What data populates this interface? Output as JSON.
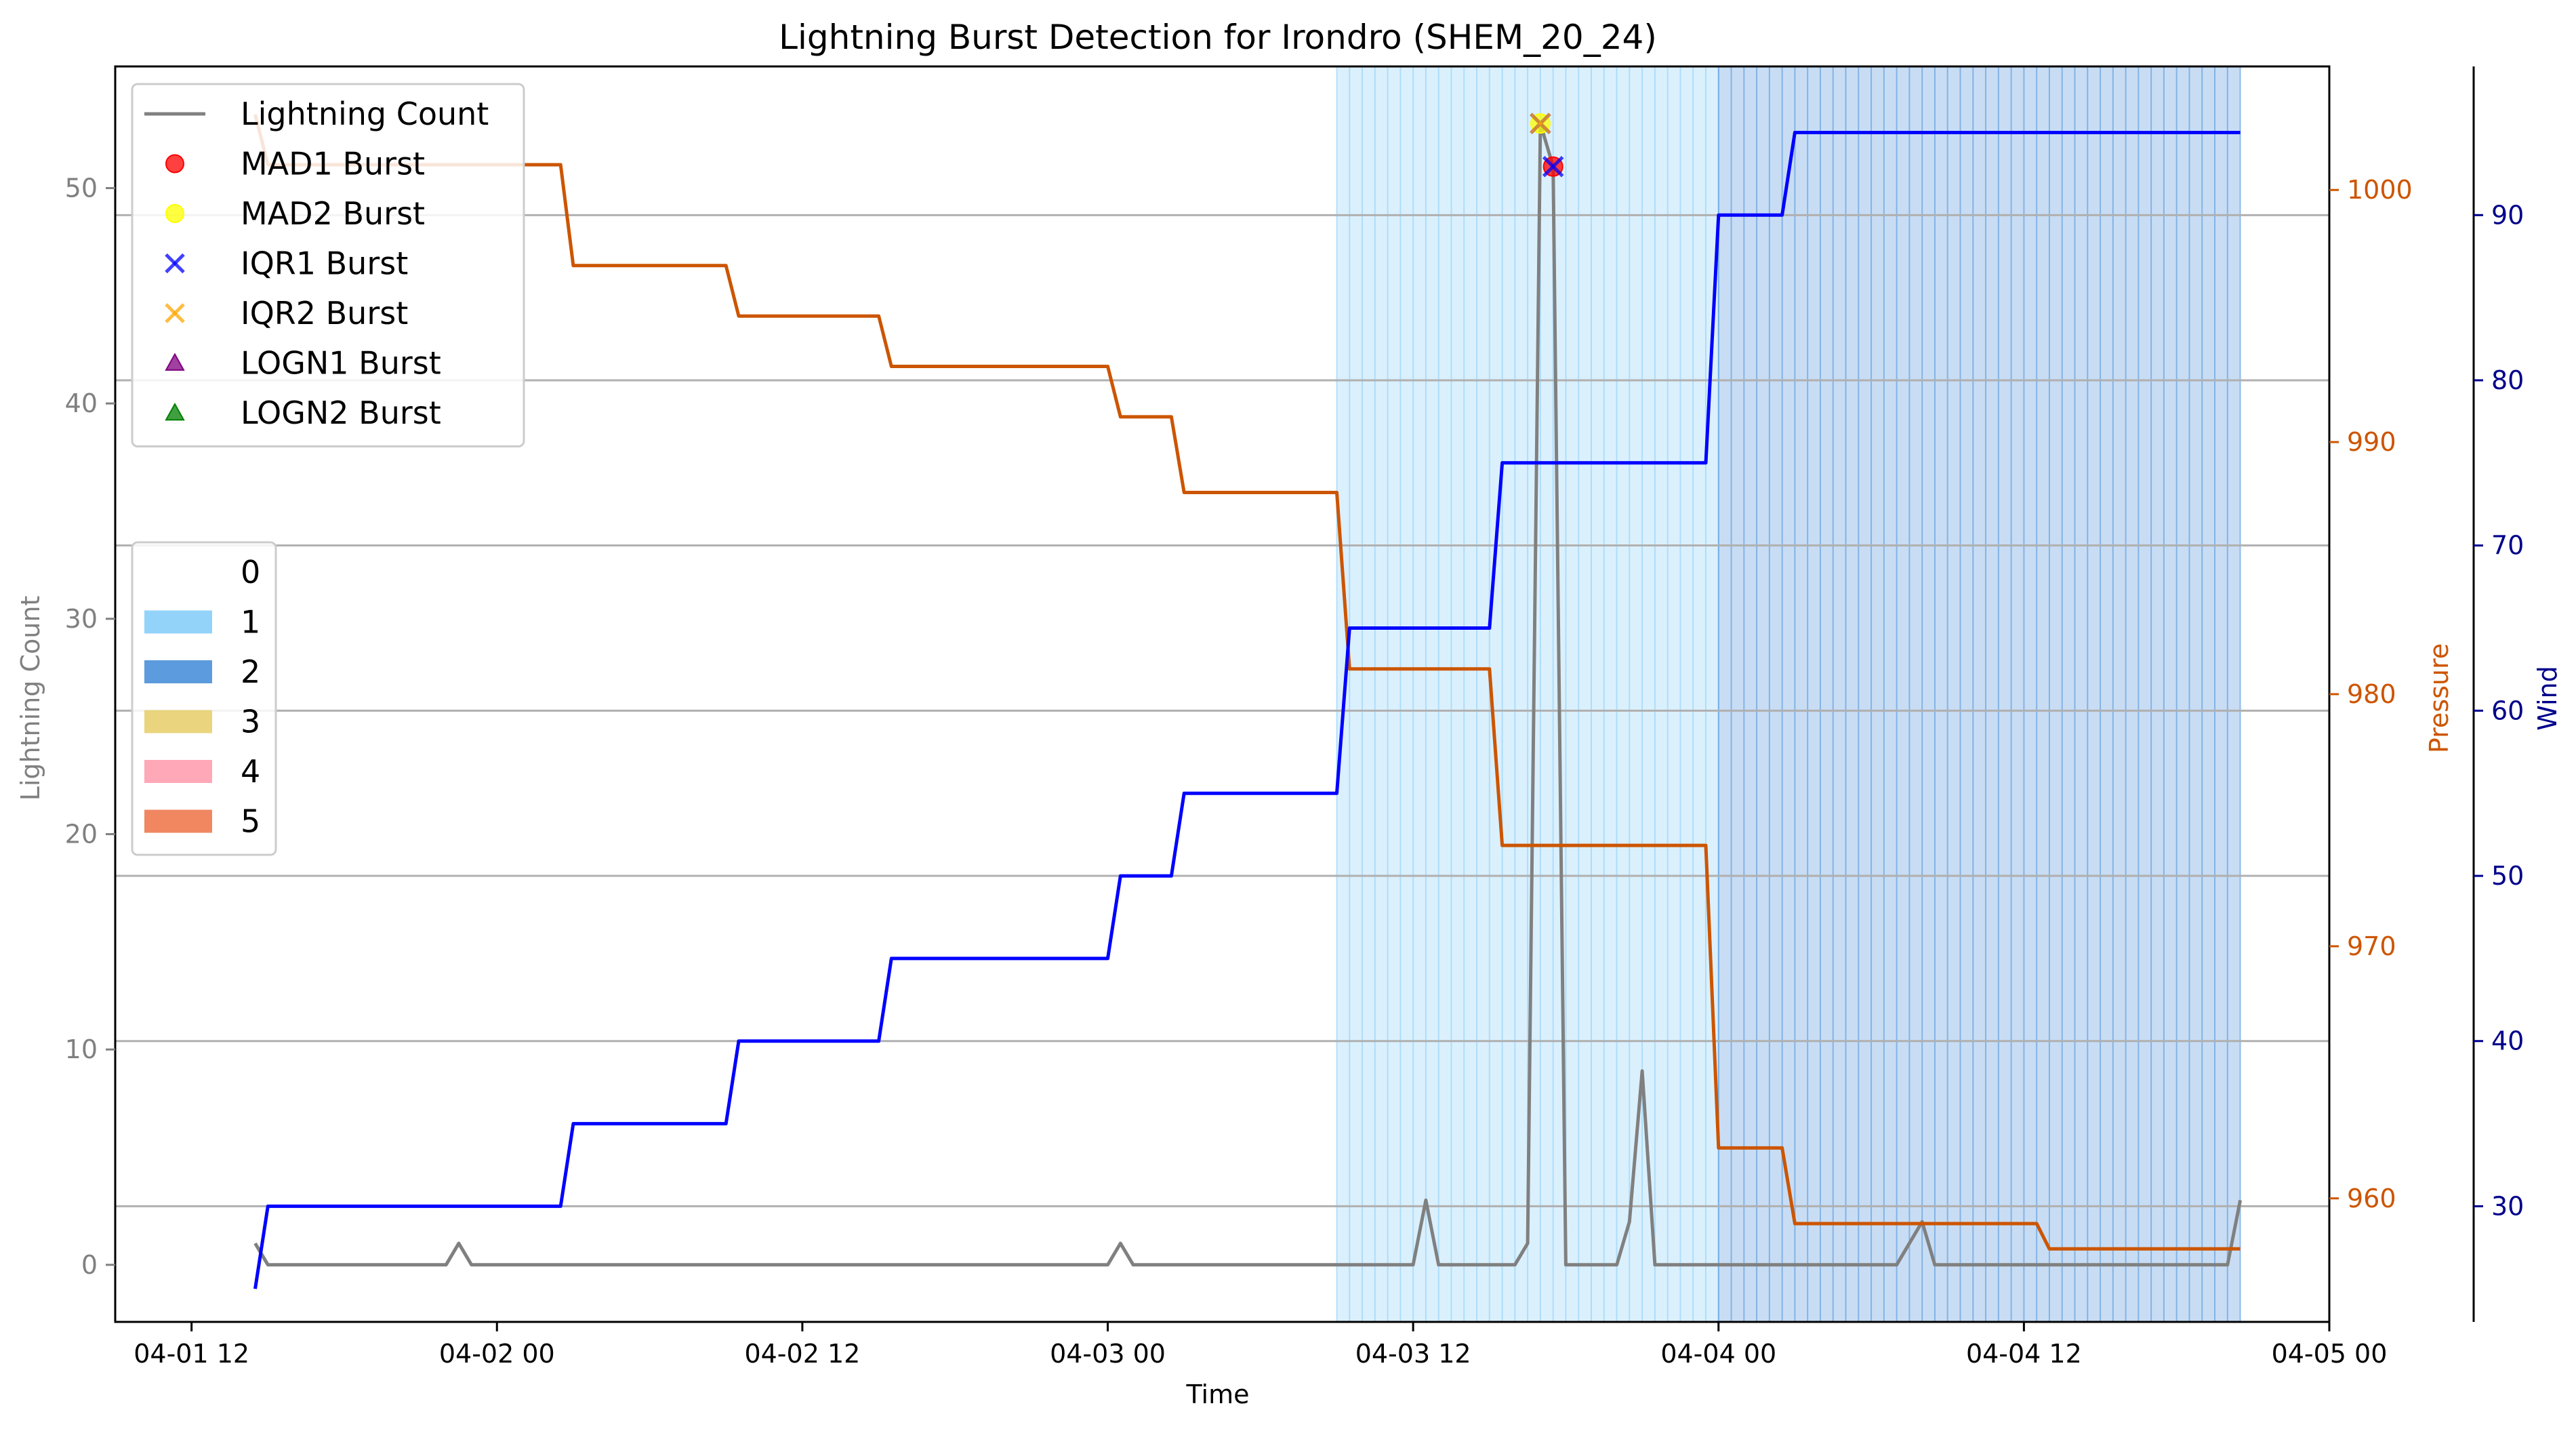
{
  "chart_data": {
    "type": "line",
    "title": "Lightning Burst Detection for Irondro (SHEM_20_24)",
    "xlabel": "Time",
    "ylabel_left": "Lightning Count",
    "ylabel_pressure": "Pressure",
    "ylabel_wind": "Wind",
    "x_range_hours": [
      -3,
      84
    ],
    "x_ticks": [
      {
        "h": 0,
        "label": "04-01 12"
      },
      {
        "h": 12,
        "label": "04-02 00"
      },
      {
        "h": 24,
        "label": "04-02 12"
      },
      {
        "h": 36,
        "label": "04-03 00"
      },
      {
        "h": 48,
        "label": "04-03 12"
      },
      {
        "h": 60,
        "label": "04-04 00"
      },
      {
        "h": 72,
        "label": "04-04 12"
      },
      {
        "h": 84,
        "label": "04-05 00"
      }
    ],
    "y_left": {
      "range": [
        -2.65,
        55.65
      ],
      "ticks": [
        0,
        10,
        20,
        30,
        40,
        50
      ]
    },
    "y_pressure": {
      "range": [
        955.1,
        1004.9
      ],
      "ticks": [
        960,
        970,
        980,
        990,
        1000
      ]
    },
    "y_wind": {
      "range": [
        23.0,
        99.0
      ],
      "ticks": [
        30,
        40,
        50,
        60,
        70,
        80,
        90
      ]
    },
    "grid_y_wind": [
      30,
      40,
      50,
      60,
      70,
      80,
      90
    ],
    "category_bands": [
      {
        "category": "1",
        "start": 45,
        "end": 60,
        "color": "#87cefa",
        "step": 0.5
      },
      {
        "category": "2",
        "start": 60,
        "end": 80.5,
        "color": "#4a90d9",
        "step": 0.5
      }
    ],
    "series": [
      {
        "name": "Lightning Count",
        "axis": "left",
        "color": "#808080",
        "points": [
          [
            2.5,
            1
          ],
          [
            3,
            0
          ],
          [
            10,
            0
          ],
          [
            10.5,
            1
          ],
          [
            11,
            0
          ],
          [
            36,
            0
          ],
          [
            36.5,
            1
          ],
          [
            37,
            0
          ],
          [
            48,
            0
          ],
          [
            48.5,
            3
          ],
          [
            49,
            0
          ],
          [
            52,
            0
          ],
          [
            52.5,
            1
          ],
          [
            53,
            53
          ],
          [
            53.5,
            51
          ],
          [
            54,
            0
          ],
          [
            56,
            0
          ],
          [
            56.5,
            2
          ],
          [
            57,
            9
          ],
          [
            57.5,
            0
          ],
          [
            67,
            0
          ],
          [
            68,
            2
          ],
          [
            68.5,
            0
          ],
          [
            80,
            0
          ],
          [
            80.5,
            3
          ]
        ]
      },
      {
        "name": "Pressure",
        "axis": "pressure",
        "color": "#cc5500",
        "points": [
          [
            2.5,
            1003
          ],
          [
            3,
            1001
          ],
          [
            14.5,
            1001
          ],
          [
            15,
            997
          ],
          [
            21,
            997
          ],
          [
            21.5,
            995
          ],
          [
            27,
            995
          ],
          [
            27.5,
            993
          ],
          [
            36,
            993
          ],
          [
            36.5,
            991
          ],
          [
            38.5,
            991
          ],
          [
            39,
            988
          ],
          [
            45,
            988
          ],
          [
            45.5,
            981
          ],
          [
            51,
            981
          ],
          [
            51.5,
            974
          ],
          [
            59.5,
            974
          ],
          [
            60,
            962
          ],
          [
            62.5,
            962
          ],
          [
            63,
            959
          ],
          [
            68.5,
            959
          ],
          [
            69,
            959
          ],
          [
            72.5,
            959
          ],
          [
            73,
            958
          ],
          [
            80.5,
            958
          ]
        ]
      },
      {
        "name": "Wind",
        "axis": "wind",
        "color": "#0000ff",
        "points": [
          [
            2.5,
            25
          ],
          [
            3,
            30
          ],
          [
            14.5,
            30
          ],
          [
            15,
            35
          ],
          [
            21,
            35
          ],
          [
            21.5,
            40
          ],
          [
            27,
            40
          ],
          [
            27.5,
            45
          ],
          [
            36,
            45
          ],
          [
            36.5,
            50
          ],
          [
            38.5,
            50
          ],
          [
            39,
            55
          ],
          [
            45,
            55
          ],
          [
            45.5,
            65
          ],
          [
            51,
            65
          ],
          [
            51.5,
            75
          ],
          [
            59.5,
            75
          ],
          [
            60,
            90
          ],
          [
            62.5,
            90
          ],
          [
            63,
            95
          ],
          [
            80.5,
            95
          ]
        ]
      }
    ],
    "burst_markers": [
      {
        "name": "MAD1 Burst",
        "shape": "circle",
        "color": "#ff0000",
        "points": [
          [
            53.5,
            51
          ]
        ]
      },
      {
        "name": "MAD2 Burst",
        "shape": "circle",
        "color": "#ffff00",
        "points": [
          [
            53,
            53
          ]
        ]
      },
      {
        "name": "IQR1 Burst",
        "shape": "x",
        "color": "#0000ff",
        "points": [
          [
            53,
            53
          ],
          [
            53.5,
            51
          ]
        ]
      },
      {
        "name": "IQR2 Burst",
        "shape": "x",
        "color": "#ffa500",
        "points": [
          [
            53,
            53
          ]
        ]
      },
      {
        "name": "LOGN1 Burst",
        "shape": "triangle",
        "color": "#800080",
        "points": []
      },
      {
        "name": "LOGN2 Burst",
        "shape": "triangle",
        "color": "#008000",
        "points": []
      }
    ],
    "legend_series": {
      "placement": "top-left",
      "entries": [
        {
          "label": "Lightning Count",
          "kind": "line",
          "color": "#808080"
        },
        {
          "label": "MAD1 Burst",
          "kind": "circle",
          "color": "#ff0000"
        },
        {
          "label": "MAD2 Burst",
          "kind": "circle",
          "color": "#ffff00"
        },
        {
          "label": "IQR1 Burst",
          "kind": "x",
          "color": "#0000ff"
        },
        {
          "label": "IQR2 Burst",
          "kind": "x",
          "color": "#ffa500"
        },
        {
          "label": "LOGN1 Burst",
          "kind": "triangle",
          "color": "#800080"
        },
        {
          "label": "LOGN2 Burst",
          "kind": "triangle",
          "color": "#008000"
        }
      ]
    },
    "legend_categories": {
      "placement": "center-left",
      "entries": [
        {
          "label": "0",
          "color": "#ffffff"
        },
        {
          "label": "1",
          "color": "#87cefa"
        },
        {
          "label": "2",
          "color": "#4a90d9"
        },
        {
          "label": "3",
          "color": "#e8d070"
        },
        {
          "label": "4",
          "color": "#ff9eb0"
        },
        {
          "label": "5",
          "color": "#ee7a50"
        }
      ]
    }
  }
}
